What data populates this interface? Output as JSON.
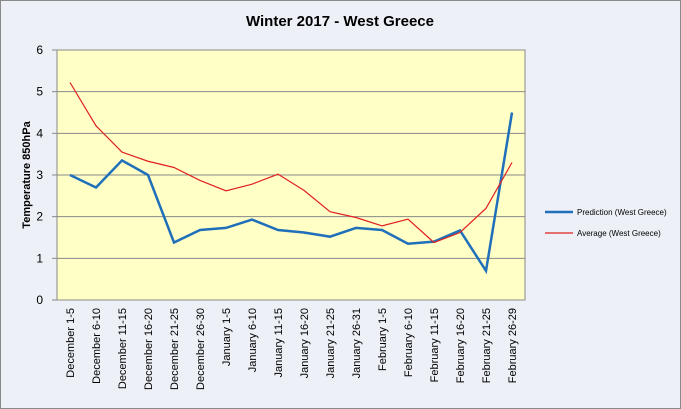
{
  "chart_data": {
    "type": "line",
    "title": "Winter 2017 - West Greece",
    "y_label": "Temperature 850hPa",
    "categories": [
      "December 1-5",
      "December 6-10",
      "December 11-15",
      "December 16-20",
      "December 21-25",
      "December 26-30",
      "January 1-5",
      "January 6-10",
      "January 11-15",
      "January 16-20",
      "January 21-25",
      "January 26-31",
      "February 1-5",
      "February 6-10",
      "February 11-15",
      "February 16-20",
      "February 21-25",
      "February 26-29"
    ],
    "series": [
      {
        "name": "Prediction (West Greece)",
        "color": "#1f6fba",
        "values": [
          3.0,
          2.7,
          3.35,
          3.0,
          1.38,
          1.68,
          1.73,
          1.93,
          1.68,
          1.62,
          1.52,
          1.73,
          1.68,
          1.35,
          1.4,
          1.67,
          0.7,
          4.5
        ]
      },
      {
        "name": "Average (West Greece)",
        "color": "#e02020",
        "values": [
          5.22,
          4.18,
          3.55,
          3.33,
          3.18,
          2.87,
          2.62,
          2.78,
          3.02,
          2.63,
          2.12,
          1.98,
          1.78,
          1.94,
          1.38,
          1.62,
          2.2,
          3.3
        ]
      }
    ],
    "ylim": [
      0,
      6
    ],
    "yticks": [
      0,
      1,
      2,
      3,
      4,
      5,
      6
    ],
    "grid": true,
    "legend": "right"
  }
}
